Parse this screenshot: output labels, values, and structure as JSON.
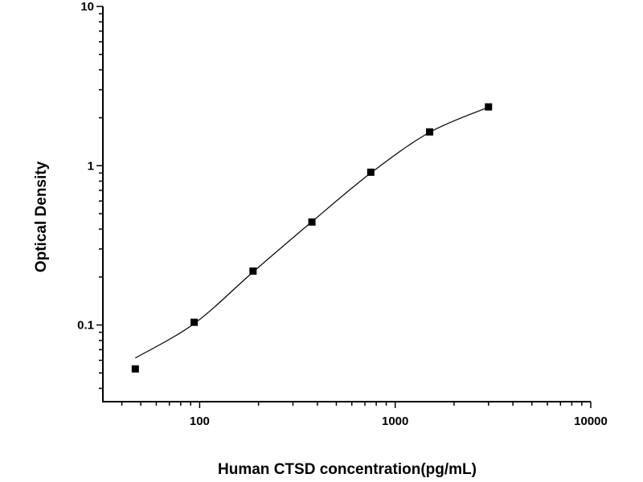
{
  "chart_data": {
    "type": "scatter",
    "title": "",
    "xlabel": "Human CTSD concentration(pg/mL)",
    "ylabel": "Optical Density",
    "xscale": "log",
    "yscale": "log",
    "xlim": [
      32,
      10000
    ],
    "ylim": [
      0.033,
      10
    ],
    "x_ticks": [
      100,
      1000,
      10000
    ],
    "x_tick_labels": [
      "100",
      "1000",
      "10000"
    ],
    "y_ticks": [
      0.1,
      1,
      10
    ],
    "y_tick_labels": [
      "0.1",
      "1",
      "10"
    ],
    "grid": false,
    "legend": "none",
    "points": {
      "x": [
        46.875,
        93.75,
        187.5,
        375,
        750,
        1500,
        3000
      ],
      "y": [
        0.053,
        0.104,
        0.218,
        0.443,
        0.91,
        1.63,
        2.34
      ]
    },
    "fit_curve": {
      "x": [
        46.875,
        93.75,
        187.5,
        375,
        750,
        1500,
        3000
      ],
      "y": [
        0.062,
        0.102,
        0.215,
        0.445,
        0.9,
        1.62,
        2.33
      ]
    },
    "colors": {
      "marker": "#000000",
      "line": "#000000"
    }
  }
}
